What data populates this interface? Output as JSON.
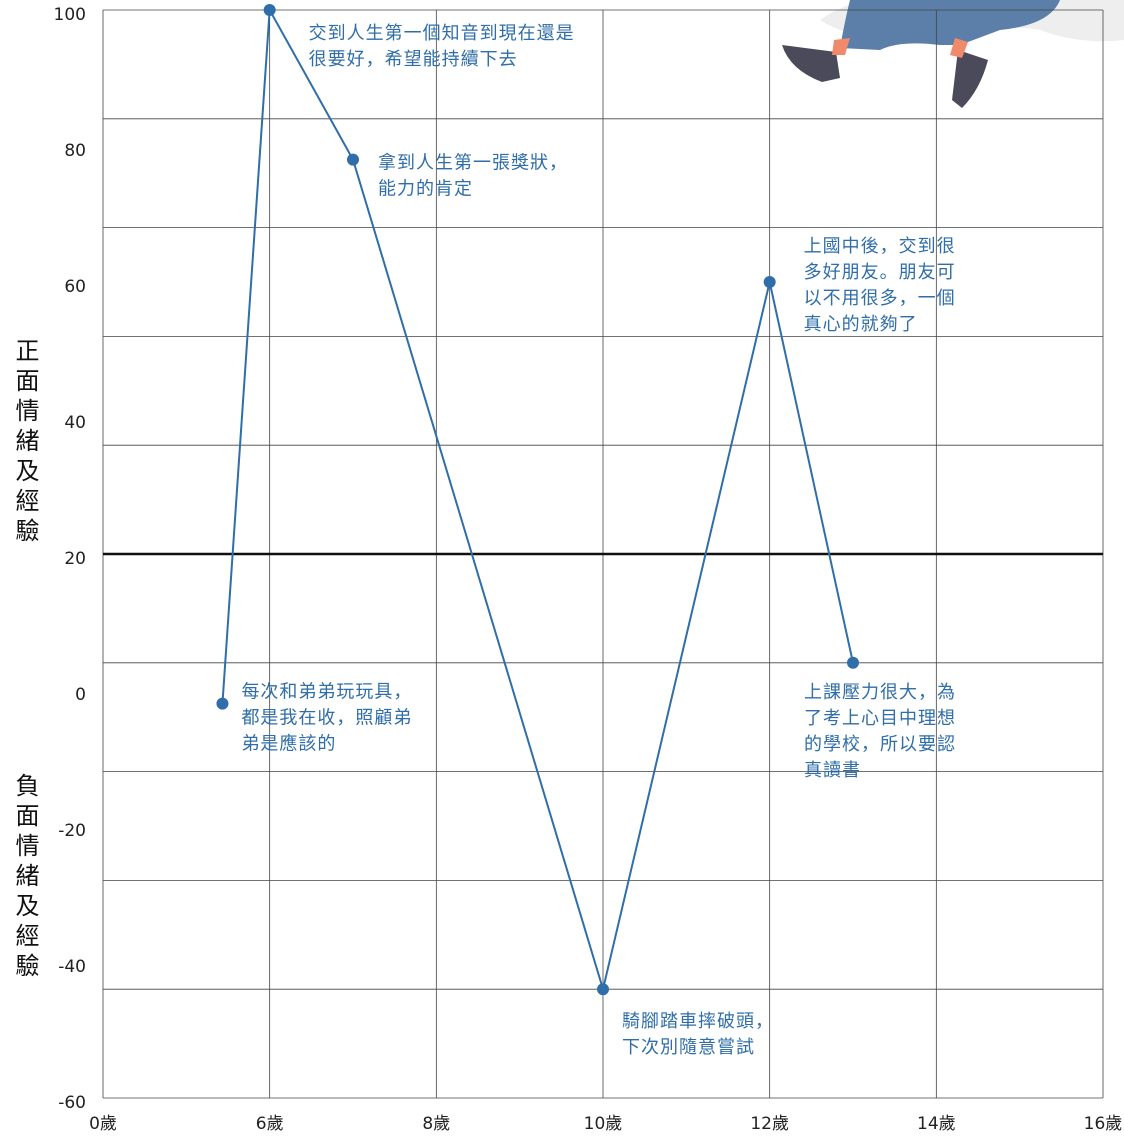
{
  "chart_data": {
    "type": "line",
    "y_label_positive": "正面情緒及經驗",
    "y_label_negative": "負面情緒及經驗",
    "x": [
      4.3,
      6,
      7,
      10,
      12,
      13
    ],
    "series": [
      {
        "color": "#2f6ea8",
        "values": [
          -2,
          100,
          78,
          -44,
          60,
          4
        ]
      }
    ],
    "xlim": [
      0,
      16
    ],
    "xticks": [
      {
        "value": 0,
        "label": "0歲"
      },
      {
        "value": 6,
        "label": "6歲"
      },
      {
        "value": 8,
        "label": "8歲"
      },
      {
        "value": 10,
        "label": "10歲"
      },
      {
        "value": 12,
        "label": "12歲"
      },
      {
        "value": 14,
        "label": "14歲"
      },
      {
        "value": 16,
        "label": "16歲"
      }
    ],
    "ylim": [
      -60,
      100
    ],
    "yticks": [
      100,
      80,
      60,
      40,
      20,
      0,
      -20,
      -40,
      -60
    ],
    "ygrid": [
      100,
      84,
      68,
      52,
      36,
      20,
      4,
      -12,
      -28,
      -44,
      -60
    ],
    "baseline": 20,
    "grid": true,
    "annotations": [
      {
        "point": 0,
        "lines": [
          "每次和弟弟玩玩具，",
          "都是我在收，照顧弟",
          "弟是應該的"
        ]
      },
      {
        "point": 1,
        "lines": [
          "交到人生第一個知音到現在還是",
          "很要好，希望能持續下去"
        ]
      },
      {
        "point": 2,
        "lines": [
          "拿到人生第一張獎狀，",
          "能力的肯定"
        ]
      },
      {
        "point": 3,
        "lines": [
          "騎腳踏車摔破頭，",
          "下次別隨意嘗試"
        ]
      },
      {
        "point": 4,
        "lines": [
          "上國中後，交到很",
          "多好朋友。朋友可",
          "以不用很多，一個",
          "真心的就夠了"
        ]
      },
      {
        "point": 5,
        "lines": [
          "上課壓力很大，為",
          "了考上心目中理想",
          "的學校，所以要認",
          "真讀書"
        ]
      }
    ]
  }
}
